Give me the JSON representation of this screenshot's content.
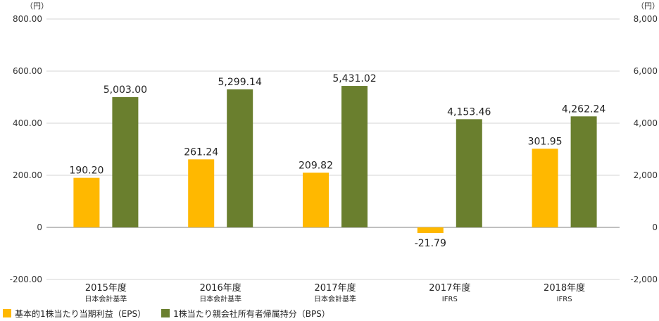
{
  "chart_data": {
    "type": "bar",
    "categories": [
      "2015年度",
      "2016年度",
      "2017年度",
      "2017年度",
      "2018年度"
    ],
    "category_sublabels": [
      "日本会計基準",
      "日本会計基準",
      "日本会計基準",
      "IFRS",
      "IFRS"
    ],
    "series": [
      {
        "name": "基本的1株当たり当期利益（EPS）",
        "axis": "left",
        "color": "#FFB800",
        "values": [
          190.2,
          261.24,
          209.82,
          -21.79,
          301.95
        ],
        "labels": [
          "190.20",
          "261.24",
          "209.82",
          "-21.79",
          "301.95"
        ]
      },
      {
        "name": "1株当たり親会社所有者帰属持分（BPS）",
        "axis": "right",
        "color": "#6A7F2E",
        "values": [
          5003.0,
          5299.14,
          5431.02,
          4153.46,
          4262.24
        ],
        "labels": [
          "5,003.00",
          "5,299.14",
          "5,431.02",
          "4,153.46",
          "4,262.24"
        ]
      }
    ],
    "y_left": {
      "unit": "（円）",
      "lim": [
        -200,
        800
      ],
      "ticks": [
        800,
        600,
        400,
        200,
        0,
        -200
      ],
      "tick_labels": [
        "800.00",
        "600.00",
        "400.00",
        "200.00",
        "0",
        "-200.00"
      ]
    },
    "y_right": {
      "unit": "（円）",
      "lim": [
        -2000,
        8000
      ],
      "ticks": [
        8000,
        6000,
        4000,
        2000,
        0,
        -2000
      ],
      "tick_labels": [
        "8,000",
        "6,000",
        "4,000",
        "2,000",
        "0",
        "-2,000"
      ]
    },
    "grid": "horizontal",
    "legend_position": "bottom-left"
  }
}
